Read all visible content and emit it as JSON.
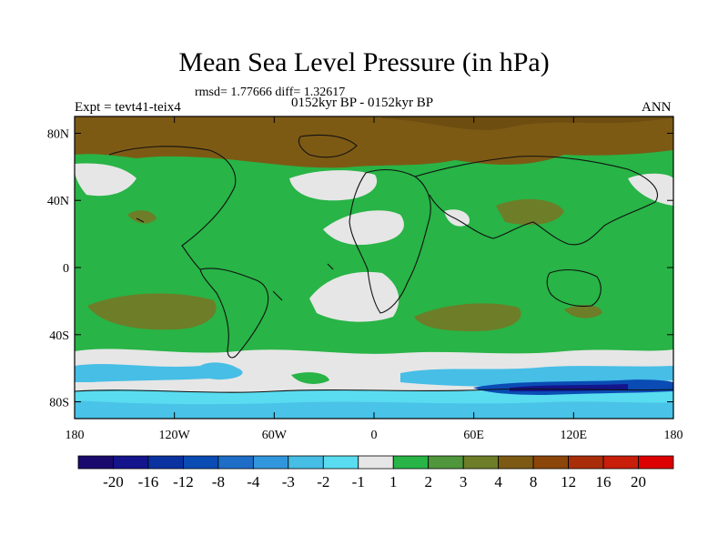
{
  "chart_data": {
    "type": "heatmap",
    "title": "Mean Sea Level Pressure (in hPa)",
    "stats_text": "rmsd= 1.77666 diff= 1.32617",
    "experiment": "Expt = tevt41-teix4",
    "period": "0152kyr BP - 0152kyr BP",
    "season": "ANN",
    "x_ticks": [
      "180",
      "120W",
      "60W",
      "0",
      "60E",
      "120E",
      "180"
    ],
    "x_tick_values": [
      -180,
      -120,
      -60,
      0,
      60,
      120,
      180
    ],
    "y_ticks": [
      "80N",
      "40N",
      "0",
      "40S",
      "80S"
    ],
    "y_tick_values": [
      80,
      40,
      0,
      -40,
      -80
    ],
    "xlim": [
      -180,
      180
    ],
    "ylim": [
      -90,
      90
    ],
    "colorbar": {
      "labels": [
        "-20",
        "-16",
        "-12",
        "-8",
        "-4",
        "-3",
        "-2",
        "-1",
        "1",
        "2",
        "3",
        "4",
        "8",
        "12",
        "16",
        "20"
      ],
      "colors": [
        "#1a0a6e",
        "#14148c",
        "#0a32a0",
        "#0a4bb4",
        "#1e6ec8",
        "#3296dc",
        "#46bee6",
        "#5adcf0",
        "#e6e6e6",
        "#28b446",
        "#50963c",
        "#6e7d28",
        "#7d5a14",
        "#8c460a",
        "#aa2d0a",
        "#c81e0a",
        "#dc0000"
      ]
    },
    "regions": [
      {
        "name": "background",
        "value_range": "1 to 2",
        "color": "#28b446"
      },
      {
        "name": "arctic-high",
        "value_range": "4 to 8",
        "color": "#7d5a14"
      },
      {
        "name": "subtropical-lows",
        "value_range": "-1 to 1",
        "color": "#e6e6e6"
      },
      {
        "name": "southern-ocean-low",
        "value_range": "-8 to -1",
        "color": "#46bee6"
      },
      {
        "name": "midlatitude-anomalies",
        "value_range": "3 to 4",
        "color": "#6e7d28"
      }
    ]
  }
}
